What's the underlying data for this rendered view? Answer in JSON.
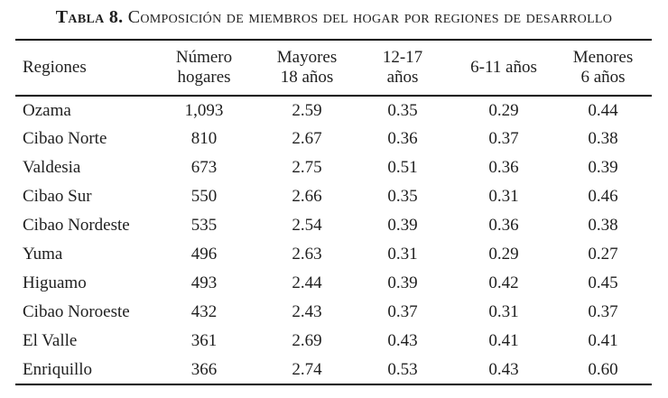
{
  "title": {
    "label": "Tabla 8.",
    "rest": " Composición de miembros del hogar por regiones de desarrollo"
  },
  "table": {
    "columns": [
      {
        "label": "Regiones"
      },
      {
        "label": "Número\nhogares"
      },
      {
        "label": "Mayores\n18 años"
      },
      {
        "label": "12-17\naños"
      },
      {
        "label": "6-11 años"
      },
      {
        "label": "Menores\n6 años"
      }
    ],
    "rows": [
      {
        "cells": [
          "Ozama",
          "1,093",
          "2.59",
          "0.35",
          "0.29",
          "0.44"
        ]
      },
      {
        "cells": [
          "Cibao Norte",
          "810",
          "2.67",
          "0.36",
          "0.37",
          "0.38"
        ]
      },
      {
        "cells": [
          "Valdesia",
          "673",
          "2.75",
          "0.51",
          "0.36",
          "0.39"
        ]
      },
      {
        "cells": [
          "Cibao Sur",
          "550",
          "2.66",
          "0.35",
          "0.31",
          "0.46"
        ]
      },
      {
        "cells": [
          "Cibao Nordeste",
          "535",
          "2.54",
          "0.39",
          "0.36",
          "0.38"
        ]
      },
      {
        "cells": [
          "Yuma",
          "496",
          "2.63",
          "0.31",
          "0.29",
          "0.27"
        ]
      },
      {
        "cells": [
          "Higuamo",
          "493",
          "2.44",
          "0.39",
          "0.42",
          "0.45"
        ]
      },
      {
        "cells": [
          "Cibao Noroeste",
          "432",
          "2.43",
          "0.37",
          "0.31",
          "0.37"
        ]
      },
      {
        "cells": [
          "El Valle",
          "361",
          "2.69",
          "0.43",
          "0.41",
          "0.41"
        ]
      },
      {
        "cells": [
          "Enriquillo",
          "366",
          "2.74",
          "0.53",
          "0.43",
          "0.60"
        ]
      }
    ]
  },
  "colors": {
    "text": "#1f1f1f",
    "rule": "#000000",
    "background": "#ffffff"
  }
}
